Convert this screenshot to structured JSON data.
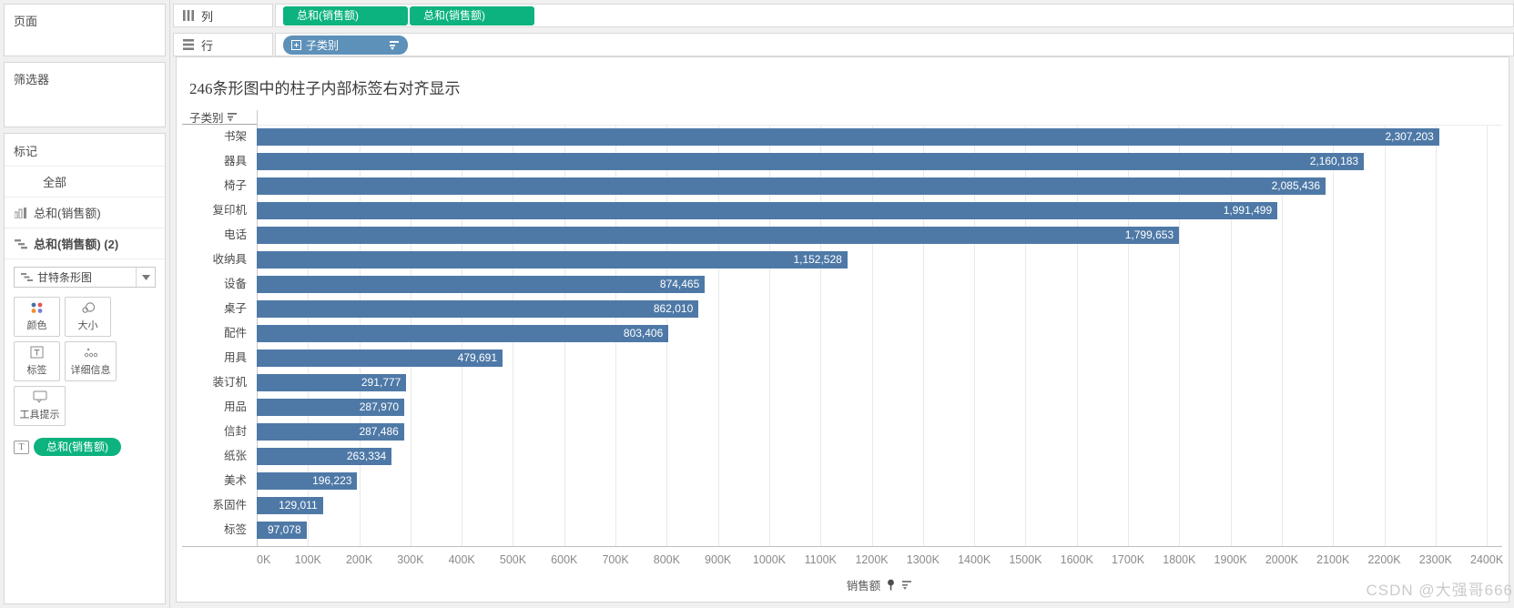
{
  "watermark": "CSDN @大强哥666",
  "sidebar": {
    "pages_title": "页面",
    "filters_title": "筛选器",
    "marks": {
      "title": "标记",
      "all_label": "全部",
      "layer1_label": "总和(销售额)",
      "layer2_label": "总和(销售额) (2)",
      "mark_type": "甘特条形图",
      "btn_color": "颜色",
      "btn_size": "大小",
      "btn_label": "标签",
      "btn_detail": "详细信息",
      "btn_tooltip": "工具提示",
      "label_pill": "总和(销售额)"
    }
  },
  "shelves": {
    "columns_label": "列",
    "rows_label": "行",
    "col_pill_1": "总和(销售额)",
    "col_pill_2": "总和(销售额)",
    "row_pill": "子类别"
  },
  "chart_data": {
    "type": "bar",
    "orientation": "horizontal",
    "title": "246条形图中的柱子内部标签右对齐显示",
    "row_header": "子类别",
    "xlabel": "销售额",
    "categories": [
      "书架",
      "器具",
      "椅子",
      "复印机",
      "电话",
      "收纳具",
      "设备",
      "桌子",
      "配件",
      "用具",
      "装订机",
      "用品",
      "信封",
      "纸张",
      "美术",
      "系固件",
      "标签"
    ],
    "values": [
      2307203,
      2160183,
      2085436,
      1991499,
      1799653,
      1152528,
      874465,
      862010,
      803406,
      479691,
      291777,
      287970,
      287486,
      263334,
      196223,
      129011,
      97078
    ],
    "value_labels": [
      "2,307,203",
      "2,160,183",
      "2,085,436",
      "1,991,499",
      "1,799,653",
      "1,152,528",
      "874,465",
      "862,010",
      "803,406",
      "479,691",
      "291,777",
      "287,970",
      "287,486",
      "263,334",
      "196,223",
      "129,011",
      "97,078"
    ],
    "x_ticks": [
      "0K",
      "100K",
      "200K",
      "300K",
      "400K",
      "500K",
      "600K",
      "700K",
      "800K",
      "900K",
      "1000K",
      "1100K",
      "1200K",
      "1300K",
      "1400K",
      "1500K",
      "1600K",
      "1700K",
      "1800K",
      "1900K",
      "2000K",
      "2100K",
      "2200K",
      "2300K",
      "2400K"
    ],
    "x_tick_step": 100000,
    "x_max": 2430000,
    "bar_color": "#4e79a7",
    "grid": true,
    "label_position": "inside-right"
  }
}
